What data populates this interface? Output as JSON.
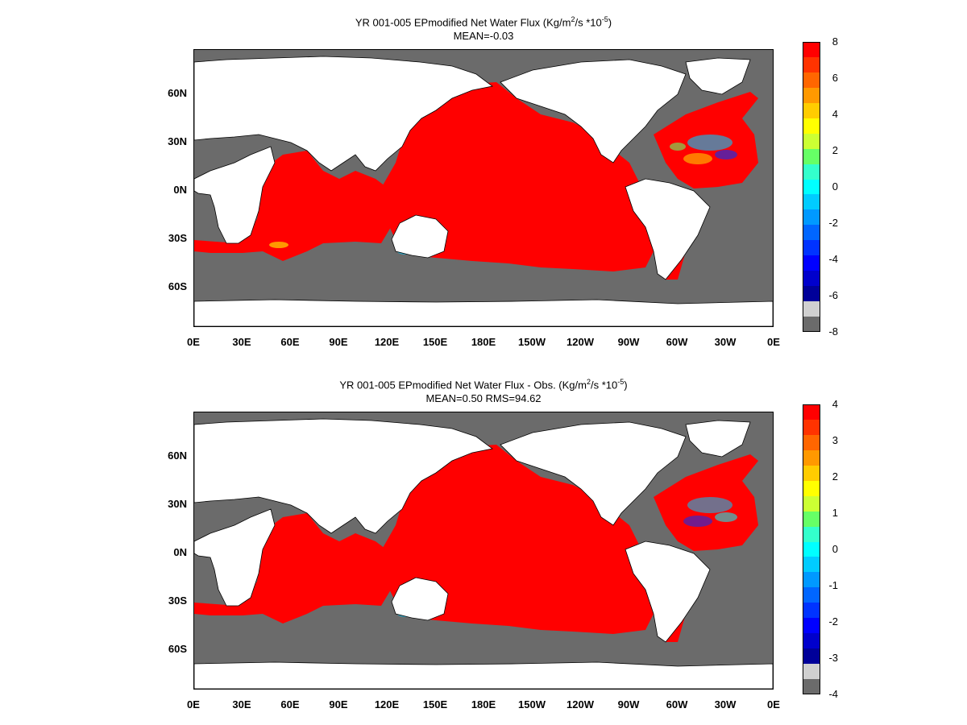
{
  "panels": [
    {
      "title_main": "YR 001-005 EPmodified  Net Water Flux (Kg/m",
      "title_sup1": "2",
      "title_mid": "/s *10",
      "title_sup2": "-5",
      "title_end": ")",
      "subtitle": "MEAN=-0.03",
      "colorbar": {
        "ticks": [
          "8",
          "6",
          "4",
          "2",
          "0",
          "-2",
          "-4",
          "-6",
          "-8"
        ]
      }
    },
    {
      "title_main": "YR 001-005 EPmodified  Net Water Flux - Obs. (Kg/m",
      "title_sup1": "2",
      "title_mid": "/s *10",
      "title_sup2": "-5",
      "title_end": ")",
      "subtitle": "MEAN=0.50 RMS=94.62",
      "colorbar": {
        "ticks": [
          "4",
          "3",
          "2",
          "1",
          "0",
          "-1",
          "-2",
          "-3",
          "-4"
        ]
      }
    }
  ],
  "axes": {
    "lat_labels": [
      "60N",
      "30N",
      "0N",
      "30S",
      "60S"
    ],
    "lon_labels": [
      "0E",
      "30E",
      "60E",
      "90E",
      "120E",
      "150E",
      "180E",
      "150W",
      "120W",
      "90W",
      "60W",
      "30W",
      "0E"
    ]
  },
  "colors": {
    "land": "#ffffff",
    "ocean_high": "#ff0000",
    "ocean_low": "#6b6b6b",
    "colorbar_scale": [
      "#ff0000",
      "#ff3300",
      "#ff6600",
      "#ff9900",
      "#ffcc00",
      "#ffff00",
      "#ccff33",
      "#66ff66",
      "#33ffcc",
      "#00ffff",
      "#00ccff",
      "#0099ff",
      "#0066ff",
      "#0033ff",
      "#0000ff",
      "#0000cc",
      "#000099",
      "#d0d0d0",
      "#6b6b6b"
    ]
  }
}
